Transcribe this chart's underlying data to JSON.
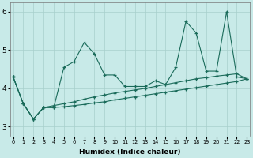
{
  "xlabel": "Humidex (Indice chaleur)",
  "xlim": [
    -0.3,
    23.3
  ],
  "ylim": [
    2.75,
    6.25
  ],
  "yticks": [
    3,
    4,
    5,
    6
  ],
  "xticks": [
    0,
    1,
    2,
    3,
    4,
    5,
    6,
    7,
    8,
    9,
    10,
    11,
    12,
    13,
    14,
    15,
    16,
    17,
    18,
    19,
    20,
    21,
    22,
    23
  ],
  "bg_color": "#c8eae8",
  "line_color": "#1a6b5a",
  "grid_color": "#a8cfcc",
  "series": [
    {
      "x": [
        0,
        1,
        2,
        3,
        4,
        5,
        6,
        7,
        8,
        9,
        10,
        11,
        12,
        13,
        14,
        15,
        16,
        17,
        18,
        19,
        20,
        21,
        22,
        23
      ],
      "y": [
        4.3,
        3.6,
        3.2,
        3.5,
        3.5,
        4.55,
        4.7,
        5.2,
        4.9,
        4.35,
        4.35,
        4.05,
        4.05,
        4.05,
        4.2,
        4.1,
        4.55,
        5.75,
        5.45,
        4.45,
        4.45,
        6.0,
        4.3,
        4.25
      ]
    },
    {
      "x": [
        0,
        1,
        2,
        3,
        4,
        5,
        6,
        7,
        8,
        9,
        10,
        11,
        12,
        13,
        14,
        15,
        16,
        17,
        18,
        19,
        20,
        21,
        22,
        23
      ],
      "y": [
        4.3,
        3.6,
        3.2,
        3.5,
        3.55,
        3.6,
        3.65,
        3.72,
        3.78,
        3.83,
        3.88,
        3.92,
        3.96,
        4.0,
        4.05,
        4.1,
        4.15,
        4.2,
        4.25,
        4.28,
        4.32,
        4.35,
        4.38,
        4.25
      ]
    },
    {
      "x": [
        0,
        1,
        2,
        3,
        4,
        5,
        6,
        7,
        8,
        9,
        10,
        11,
        12,
        13,
        14,
        15,
        16,
        17,
        18,
        19,
        20,
        21,
        22,
        23
      ],
      "y": [
        4.3,
        3.6,
        3.2,
        3.5,
        3.5,
        3.52,
        3.55,
        3.58,
        3.62,
        3.65,
        3.7,
        3.74,
        3.78,
        3.82,
        3.86,
        3.9,
        3.94,
        3.98,
        4.02,
        4.06,
        4.1,
        4.14,
        4.18,
        4.25
      ]
    }
  ]
}
